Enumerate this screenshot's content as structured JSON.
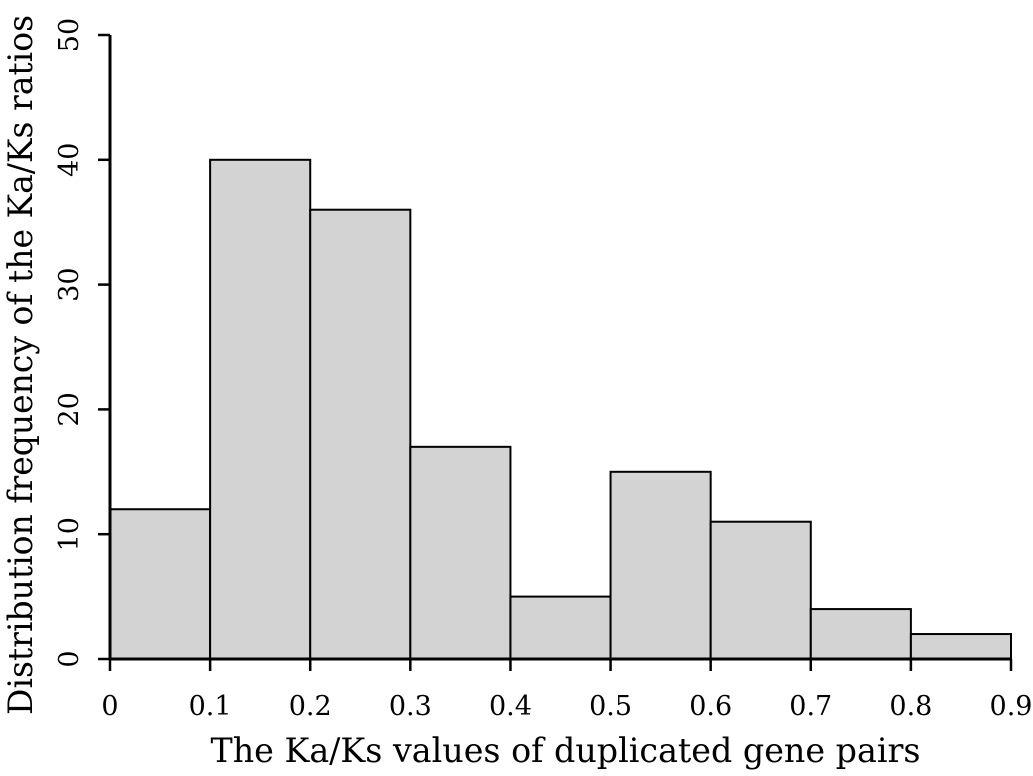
{
  "chart_data": {
    "type": "bar",
    "title": "",
    "xlabel": "The Ka/Ks values of duplicated gene pairs",
    "ylabel": "Distribution frequency of the Ka/Ks ratios",
    "bin_edges": [
      0,
      0.1,
      0.2,
      0.3,
      0.4,
      0.5,
      0.6,
      0.7,
      0.8,
      0.9
    ],
    "values": [
      12,
      40,
      36,
      17,
      5,
      15,
      11,
      4,
      2
    ],
    "xlim": [
      0,
      0.9
    ],
    "ylim": [
      0,
      50
    ],
    "x_ticks": [
      "0",
      "0.1",
      "0.2",
      "0.3",
      "0.4",
      "0.5",
      "0.6",
      "0.7",
      "0.8",
      "0.9"
    ],
    "y_ticks": [
      "0",
      "10",
      "20",
      "30",
      "40",
      "50"
    ],
    "bar_color": "#d3d3d3",
    "edge_color": "#000000",
    "grid": false,
    "legend": "none"
  }
}
